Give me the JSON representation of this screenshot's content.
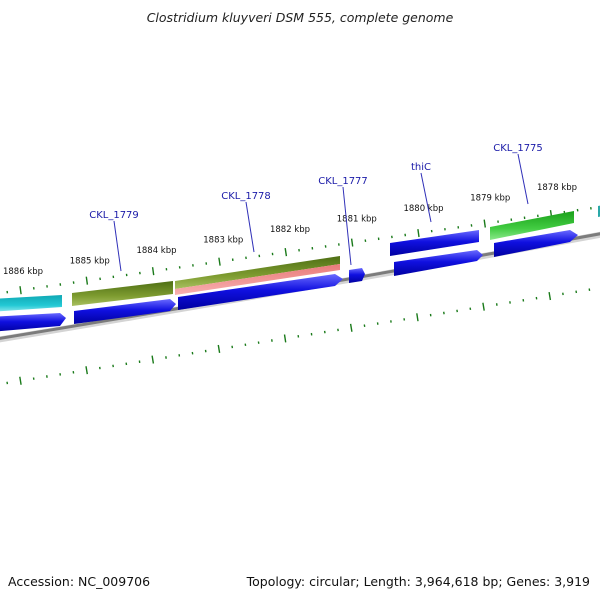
{
  "title": "Clostridium kluyveri DSM 555, complete genome",
  "footer": {
    "accession": "Accession: NC_009706",
    "summary": "Topology: circular; Length: 3,964,618 bp; Genes: 3,919"
  },
  "scale": {
    "unit": "kbp",
    "labels": [
      "1886 kbp",
      "1885 kbp",
      "1884 kbp",
      "1883 kbp",
      "1882 kbp",
      "1881 kbp",
      "1880 kbp",
      "1879 kbp",
      "1878 kbp"
    ]
  },
  "gene_labels": [
    "CKL_1779",
    "CKL_1778",
    "CKL_1777",
    "thiC",
    "CKL_1775"
  ],
  "colors": {
    "cds": "#1010d8",
    "teal_feature": "#1cbcc8",
    "olive_feature": "#6e8c22",
    "pink_feature": "#f08a8a",
    "green_feature": "#36c436",
    "backbone": "#808080",
    "ticks": "#1a7a1a"
  }
}
